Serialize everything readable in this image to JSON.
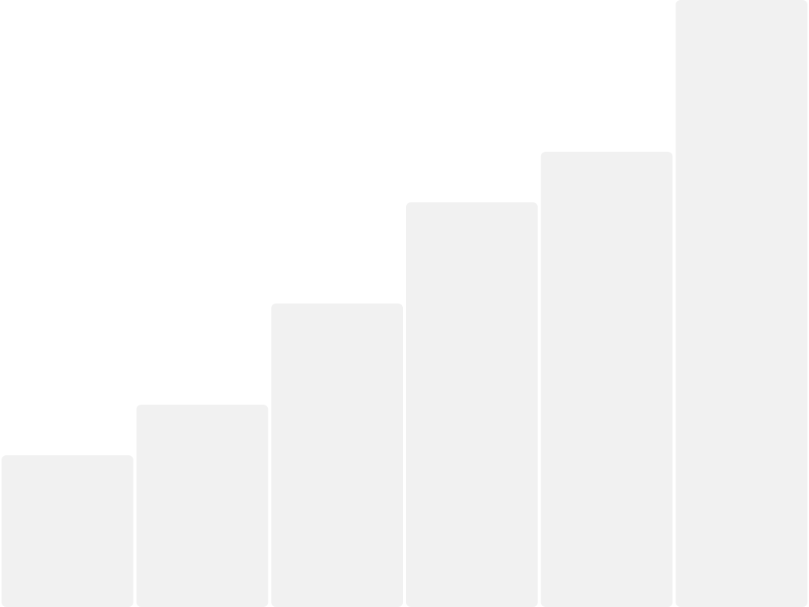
{
  "chart_data": {
    "type": "bar",
    "values": [
      3,
      4,
      6,
      8,
      9,
      12
    ],
    "color": "#f1f1f1",
    "ylim": [
      0,
      12
    ]
  }
}
